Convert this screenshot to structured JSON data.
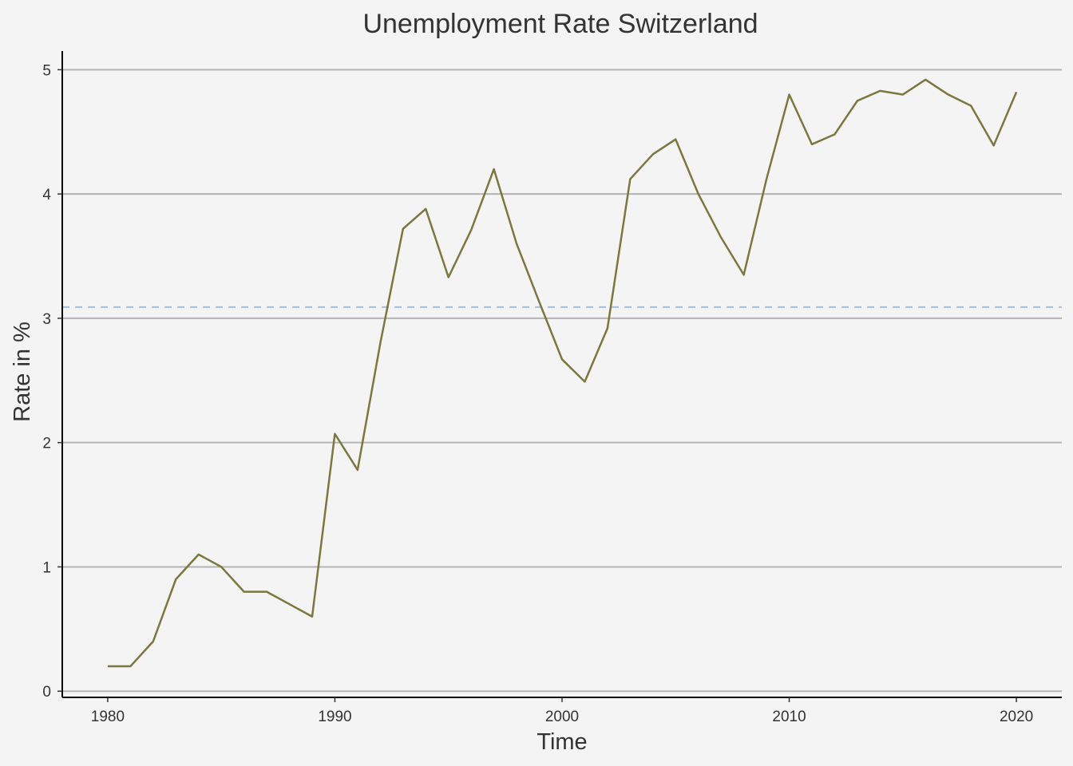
{
  "chart_data": {
    "type": "line",
    "title": "Unemployment Rate Switzerland",
    "xlabel": "Time",
    "ylabel": "Rate in %",
    "xlim": [
      1978,
      2022
    ],
    "ylim": [
      -0.05,
      5.15
    ],
    "x_ticks": [
      1980,
      1990,
      2000,
      2010,
      2020
    ],
    "y_ticks": [
      0,
      1,
      2,
      3,
      4,
      5
    ],
    "grid": "horizontal major",
    "reference_line": {
      "y": 3.09,
      "style": "dashed"
    },
    "series": [
      {
        "x": [
          1980,
          1981,
          1982,
          1983,
          1984,
          1985,
          1986,
          1987,
          1988,
          1989,
          1990,
          1991,
          1992,
          1993,
          1994,
          1995,
          1996,
          1997,
          1998,
          1999,
          2000,
          2001,
          2002,
          2003,
          2004,
          2005,
          2006,
          2007,
          2008,
          2009,
          2010,
          2011,
          2012,
          2013,
          2014,
          2015,
          2016,
          2017,
          2018,
          2019,
          2020
        ],
        "y": [
          0.2,
          0.2,
          0.4,
          0.9,
          1.1,
          1.0,
          0.8,
          0.8,
          0.7,
          0.6,
          2.07,
          1.78,
          2.8,
          3.72,
          3.88,
          3.33,
          3.71,
          4.2,
          3.6,
          3.13,
          2.67,
          2.49,
          2.92,
          4.12,
          4.32,
          4.44,
          4.0,
          3.65,
          3.35,
          4.12,
          4.8,
          4.4,
          4.48,
          4.75,
          4.83,
          4.8,
          4.92,
          4.8,
          4.71,
          4.39,
          4.82
        ]
      }
    ]
  },
  "colors": {
    "background": "#f4f4f4",
    "line": "#7a773f",
    "reference_line": "#a3bde0",
    "grid": "#b3b3b3",
    "axis": "#000000"
  }
}
